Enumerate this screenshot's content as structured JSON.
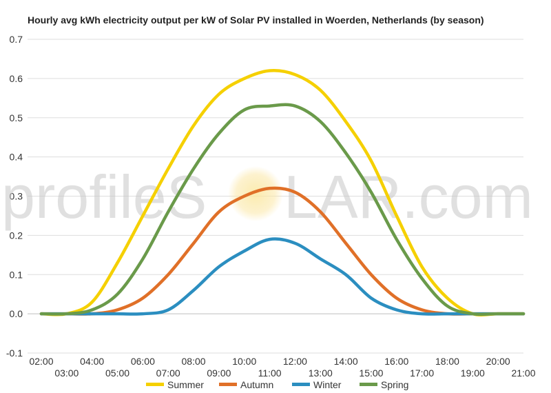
{
  "chart_data": {
    "type": "line",
    "title": "Hourly avg kWh electricity output per kW of Solar PV installed in Woerden, Netherlands (by season)",
    "xlabel": "",
    "ylabel": "",
    "ylim": [
      -0.1,
      0.7
    ],
    "yticks": [
      "-0.1",
      "0.0",
      "0.1",
      "0.2",
      "0.3",
      "0.4",
      "0.5",
      "0.6",
      "0.7"
    ],
    "xticks_upper": [
      "02:00",
      "04:00",
      "06:00",
      "08:00",
      "10:00",
      "12:00",
      "14:00",
      "16:00",
      "18:00",
      "20:00"
    ],
    "xticks_lower": [
      "03:00",
      "05:00",
      "07:00",
      "09:00",
      "11:00",
      "13:00",
      "15:00",
      "17:00",
      "19:00",
      "21:00"
    ],
    "x": [
      "02:00",
      "03:00",
      "04:00",
      "05:00",
      "06:00",
      "07:00",
      "08:00",
      "09:00",
      "10:00",
      "11:00",
      "12:00",
      "13:00",
      "14:00",
      "15:00",
      "16:00",
      "17:00",
      "18:00",
      "19:00",
      "20:00",
      "21:00"
    ],
    "grid": true,
    "legend_position": "bottom",
    "series": [
      {
        "name": "Summer",
        "color": "#f5d000",
        "values": [
          0.0,
          0.0,
          0.03,
          0.13,
          0.25,
          0.37,
          0.48,
          0.56,
          0.6,
          0.62,
          0.61,
          0.57,
          0.49,
          0.39,
          0.25,
          0.12,
          0.04,
          0.0,
          0.0,
          0.0
        ]
      },
      {
        "name": "Autumn",
        "color": "#e07028",
        "values": [
          0.0,
          0.0,
          0.0,
          0.01,
          0.04,
          0.1,
          0.18,
          0.26,
          0.3,
          0.32,
          0.31,
          0.26,
          0.18,
          0.1,
          0.04,
          0.01,
          0.0,
          0.0,
          0.0,
          0.0
        ]
      },
      {
        "name": "Winter",
        "color": "#2b8ec0",
        "values": [
          0.0,
          0.0,
          0.0,
          0.0,
          0.0,
          0.01,
          0.06,
          0.12,
          0.16,
          0.19,
          0.18,
          0.14,
          0.1,
          0.04,
          0.01,
          0.0,
          0.0,
          0.0,
          0.0,
          0.0
        ]
      },
      {
        "name": "Spring",
        "color": "#6a9a4a",
        "values": [
          0.0,
          0.0,
          0.01,
          0.05,
          0.14,
          0.26,
          0.37,
          0.46,
          0.52,
          0.53,
          0.53,
          0.49,
          0.41,
          0.31,
          0.19,
          0.09,
          0.02,
          0.0,
          0.0,
          0.0
        ]
      }
    ]
  },
  "watermark": {
    "left": "profileS",
    "right": "LAR.com"
  }
}
